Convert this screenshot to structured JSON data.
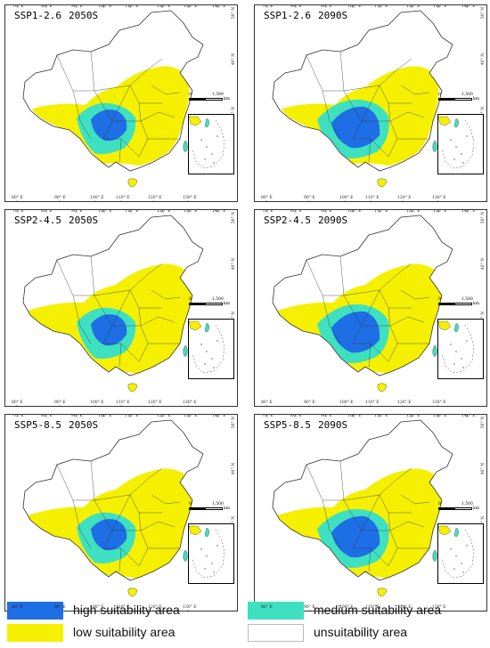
{
  "colors": {
    "high": "#1e6ee6",
    "medium": "#3fe0c0",
    "low": "#f5f000",
    "unsuitable": "#ffffff",
    "border": "#333333"
  },
  "panels": [
    {
      "scenario": "SSP1-2.6",
      "period": "2050S"
    },
    {
      "scenario": "SSP1-2.6",
      "period": "2090S"
    },
    {
      "scenario": "SSP2-4.5",
      "period": "2050S"
    },
    {
      "scenario": "SSP2-4.5",
      "period": "2090S"
    },
    {
      "scenario": "SSP5-8.5",
      "period": "2050S"
    },
    {
      "scenario": "SSP5-8.5",
      "period": "2090S"
    }
  ],
  "axes": {
    "top_ticks": [
      "70° E",
      "80° E",
      "90° E",
      "100° E",
      "110° E",
      "120° E",
      "130° E",
      "140° E"
    ],
    "bottom_ticks": [
      "80° E",
      "90° E",
      "100° E",
      "110° E",
      "120° E",
      "130° E"
    ],
    "lat_ticks": [
      "50° N",
      "40° N",
      "30° N",
      "20° N"
    ]
  },
  "scalebar": {
    "start": "0",
    "end": "1,500",
    "unit": "km"
  },
  "legend": [
    {
      "key": "high",
      "label": "high suitability area"
    },
    {
      "key": "medium",
      "label": "medium suitability area"
    },
    {
      "key": "low",
      "label": "low suitability area"
    },
    {
      "key": "unsuitable",
      "label": "unsuitability area"
    }
  ]
}
